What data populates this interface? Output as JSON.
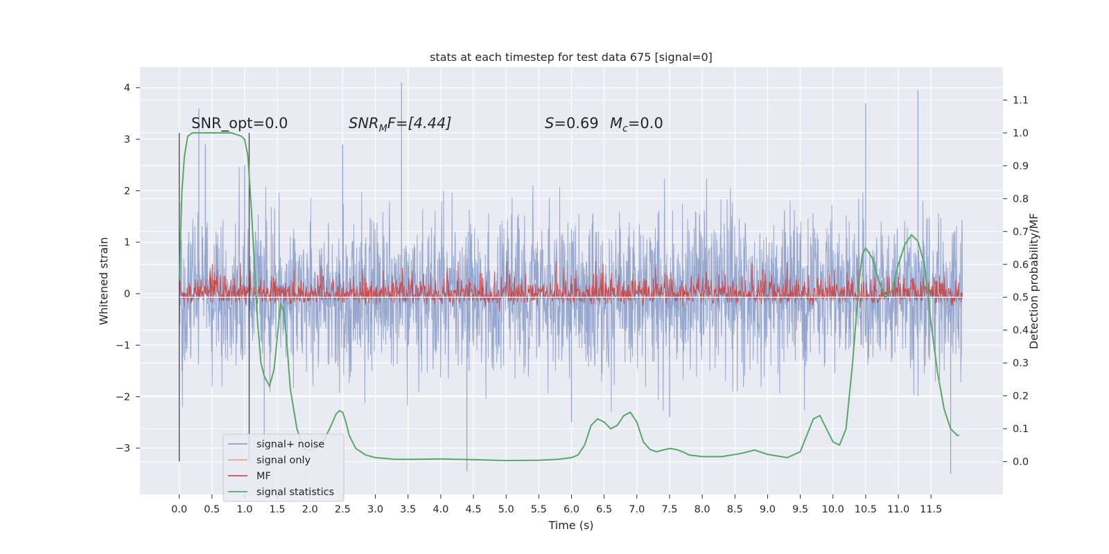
{
  "chart_data": {
    "type": "line",
    "title": "stats at each timestep for test data 675 [signal=0]",
    "xlabel": "Time (s)",
    "ylabel": "Whitened strain",
    "y2label": "Detection probability/MF",
    "xlim": [
      -0.6,
      12.6
    ],
    "ylim": [
      -3.9,
      4.4
    ],
    "y2lim": [
      -0.1,
      1.2
    ],
    "x_ticks": [
      0.0,
      0.5,
      1.0,
      1.5,
      2.0,
      2.5,
      3.0,
      3.5,
      4.0,
      4.5,
      5.0,
      5.5,
      6.0,
      6.5,
      7.0,
      7.5,
      8.0,
      8.5,
      9.0,
      9.5,
      10.0,
      10.5,
      11.0,
      11.5
    ],
    "x_tick_labels": [
      "0.0",
      "0.5",
      "1.0",
      "1.5",
      "2.0",
      "2.5",
      "3.0",
      "3.5",
      "4.0",
      "4.5",
      "5.0",
      "5.5",
      "6.0",
      "6.5",
      "7.0",
      "7.5",
      "8.0",
      "8.5",
      "9.0",
      "9.5",
      "10.0",
      "10.5",
      "11.0",
      "11.5"
    ],
    "y_ticks": [
      -3,
      -2,
      -1,
      0,
      1,
      2,
      3,
      4
    ],
    "y_tick_labels": [
      "−3",
      "−2",
      "−1",
      "0",
      "1",
      "2",
      "3",
      "4"
    ],
    "y2_ticks": [
      0.0,
      0.1,
      0.2,
      0.3,
      0.4,
      0.5,
      0.6,
      0.7,
      0.8,
      0.9,
      1.0,
      1.1
    ],
    "y2_tick_labels": [
      "0.0",
      "0.1",
      "0.2",
      "0.3",
      "0.4",
      "0.5",
      "0.6",
      "0.7",
      "0.8",
      "0.9",
      "1.0",
      "1.1"
    ],
    "grid": true,
    "legend_position": "bottom-left",
    "annotations": {
      "snr_opt": "SNR_opt=0.0",
      "snr_mf_main": "SNR",
      "snr_mf_sub": "M",
      "snr_mf_rest": "F=[4.44]",
      "s_label": "S",
      "s_value": "=0.69",
      "mc_main": "M",
      "mc_sub": "c",
      "mc_value": "=0.0"
    },
    "markers_x": [
      0.0,
      1.07
    ],
    "series": [
      {
        "name": "signal+ noise",
        "color": "#8da0cb",
        "axis": "left",
        "style": "dense noise, approx. std 0.75",
        "x_range": [
          0.0,
          11.98
        ],
        "spikes": [
          [
            0.3,
            3.6
          ],
          [
            1.0,
            2.5
          ],
          [
            3.4,
            4.1
          ],
          [
            10.5,
            3.7
          ],
          [
            11.3,
            3.95
          ],
          [
            4.4,
            -3.45
          ],
          [
            11.8,
            -3.5
          ],
          [
            6.0,
            -2.5
          ],
          [
            7.5,
            -2.4
          ],
          [
            1.3,
            -3.0
          ],
          [
            0.4,
            2.9
          ],
          [
            2.5,
            2.9
          ]
        ]
      },
      {
        "name": "signal only",
        "color": "#e8a48a",
        "axis": "left",
        "x": [],
        "y": []
      },
      {
        "name": "MF",
        "color": "#c44e52",
        "axis": "right",
        "style": "noise, baseline 0.5",
        "baseline": 0.5,
        "x_range": [
          0.0,
          11.98
        ]
      },
      {
        "name": "signal statistics",
        "color": "#55a868",
        "axis": "right",
        "x": [
          0.0,
          0.04,
          0.08,
          0.13,
          0.2,
          0.3,
          0.5,
          0.8,
          0.95,
          1.0,
          1.05,
          1.1,
          1.15,
          1.2,
          1.25,
          1.3,
          1.38,
          1.45,
          1.5,
          1.55,
          1.6,
          1.65,
          1.7,
          1.8,
          1.9,
          2.0,
          2.1,
          2.2,
          2.3,
          2.4,
          2.45,
          2.5,
          2.55,
          2.6,
          2.7,
          2.85,
          3.0,
          3.3,
          3.6,
          4.0,
          4.5,
          5.0,
          5.5,
          5.8,
          6.0,
          6.1,
          6.2,
          6.3,
          6.4,
          6.5,
          6.6,
          6.7,
          6.8,
          6.9,
          7.0,
          7.1,
          7.2,
          7.3,
          7.4,
          7.5,
          7.6,
          7.7,
          7.8,
          8.0,
          8.3,
          8.6,
          8.8,
          9.0,
          9.3,
          9.5,
          9.6,
          9.7,
          9.8,
          9.9,
          10.0,
          10.1,
          10.2,
          10.3,
          10.4,
          10.45,
          10.5,
          10.6,
          10.7,
          10.8,
          10.9,
          11.0,
          11.1,
          11.2,
          11.3,
          11.4,
          11.5,
          11.6,
          11.7,
          11.8,
          11.9,
          11.93
        ],
        "y": [
          0.55,
          0.82,
          0.93,
          0.99,
          1.0,
          1.0,
          1.0,
          1.0,
          0.99,
          0.98,
          0.93,
          0.78,
          0.6,
          0.42,
          0.3,
          0.26,
          0.23,
          0.28,
          0.38,
          0.48,
          0.46,
          0.35,
          0.22,
          0.1,
          0.04,
          0.033,
          0.04,
          0.06,
          0.1,
          0.145,
          0.155,
          0.15,
          0.12,
          0.08,
          0.04,
          0.02,
          0.012,
          0.007,
          0.007,
          0.008,
          0.006,
          0.003,
          0.004,
          0.007,
          0.012,
          0.02,
          0.05,
          0.11,
          0.13,
          0.12,
          0.1,
          0.11,
          0.14,
          0.15,
          0.12,
          0.06,
          0.037,
          0.03,
          0.035,
          0.04,
          0.037,
          0.03,
          0.02,
          0.015,
          0.015,
          0.025,
          0.035,
          0.022,
          0.012,
          0.03,
          0.08,
          0.13,
          0.14,
          0.1,
          0.06,
          0.05,
          0.1,
          0.3,
          0.55,
          0.63,
          0.65,
          0.62,
          0.55,
          0.5,
          0.52,
          0.6,
          0.66,
          0.69,
          0.67,
          0.6,
          0.42,
          0.27,
          0.16,
          0.1,
          0.08,
          0.08
        ]
      }
    ]
  }
}
